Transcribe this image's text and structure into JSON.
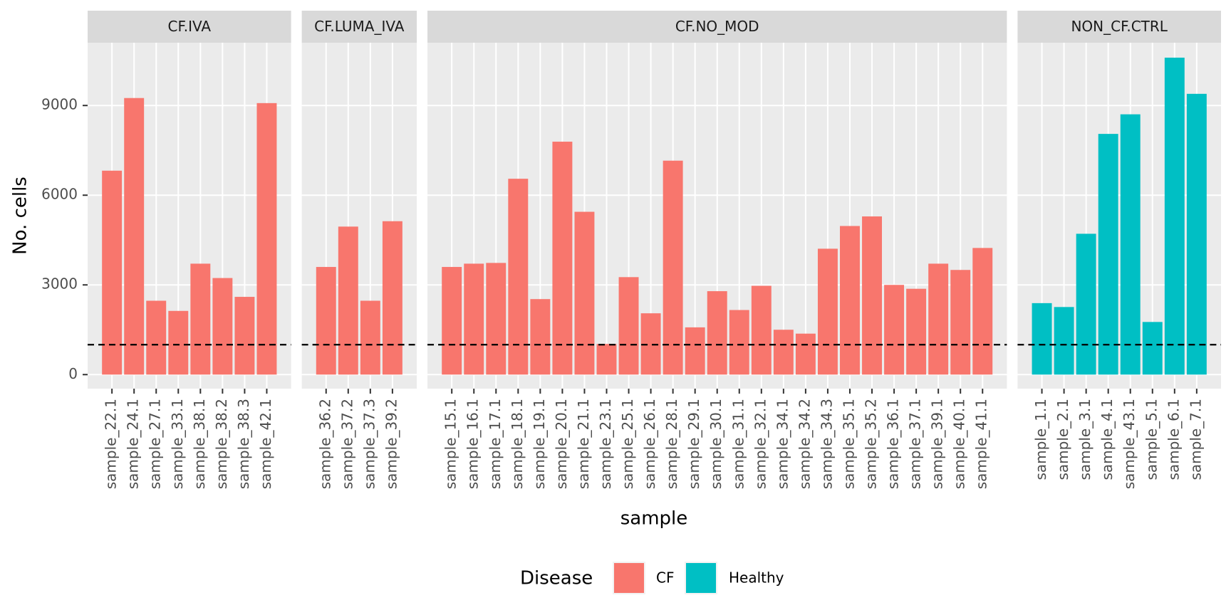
{
  "chart_data": {
    "type": "bar",
    "xlabel": "sample",
    "ylabel": "No. cells",
    "ylim": [
      -470,
      11100
    ],
    "yticks": [
      0,
      3000,
      6000,
      9000
    ],
    "grid": true,
    "hline": 1000,
    "legend": {
      "title": "Disease",
      "entries": [
        {
          "name": "CF",
          "color": "#F8766D"
        },
        {
          "name": "Healthy",
          "color": "#00BFC4"
        }
      ]
    },
    "facets": [
      {
        "title": "CF.IVA",
        "color": "#F8766D",
        "categories": [
          "sample_22.1",
          "sample_24.1",
          "sample_27.1",
          "sample_33.1",
          "sample_38.1",
          "sample_38.2",
          "sample_38.3",
          "sample_42.1"
        ],
        "values": [
          6820,
          9250,
          2470,
          2130,
          3710,
          3230,
          2600,
          9080
        ]
      },
      {
        "title": "CF.LUMA_IVA",
        "color": "#F8766D",
        "categories": [
          "sample_36.2",
          "sample_37.2",
          "sample_37.3",
          "sample_39.2"
        ],
        "values": [
          3600,
          4950,
          2470,
          5130
        ]
      },
      {
        "title": "CF.NO_MOD",
        "color": "#F8766D",
        "categories": [
          "sample_15.1",
          "sample_16.1",
          "sample_17.1",
          "sample_18.1",
          "sample_19.1",
          "sample_20.1",
          "sample_21.1",
          "sample_23.1",
          "sample_25.1",
          "sample_26.1",
          "sample_28.1",
          "sample_29.1",
          "sample_30.1",
          "sample_31.1",
          "sample_32.1",
          "sample_34.1",
          "sample_34.2",
          "sample_34.3",
          "sample_35.1",
          "sample_35.2",
          "sample_36.1",
          "sample_37.1",
          "sample_39.1",
          "sample_40.1",
          "sample_41.1"
        ],
        "values": [
          3600,
          3710,
          3735,
          6550,
          2525,
          7790,
          5445,
          1025,
          3260,
          2050,
          7155,
          1580,
          2790,
          2160,
          2970,
          1500,
          1370,
          4210,
          4970,
          5290,
          3000,
          2870,
          3710,
          3500,
          4235
        ]
      },
      {
        "title": "NON_CF.CTRL",
        "color": "#00BFC4",
        "categories": [
          "sample_1.1",
          "sample_2.1",
          "sample_3.1",
          "sample_4.1",
          "sample_43.1",
          "sample_5.1",
          "sample_6.1",
          "sample_7.1"
        ],
        "values": [
          2390,
          2260,
          4710,
          8050,
          8705,
          1760,
          10600,
          9390
        ]
      }
    ]
  }
}
